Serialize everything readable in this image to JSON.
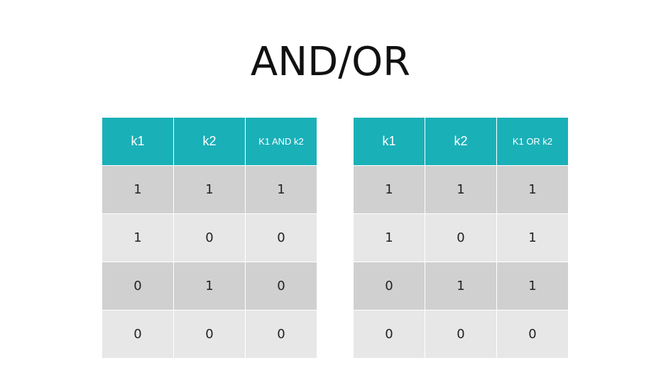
{
  "title": "AND/OR",
  "and_table": {
    "headers": [
      "k1",
      "k2",
      "K1 AND k2"
    ],
    "rows": [
      [
        "1",
        "1",
        "1"
      ],
      [
        "1",
        "0",
        "0"
      ],
      [
        "0",
        "1",
        "0"
      ],
      [
        "0",
        "0",
        "0"
      ]
    ]
  },
  "or_table": {
    "headers": [
      "k1",
      "k2",
      "K1 OR k2"
    ],
    "rows": [
      [
        "1",
        "1",
        "1"
      ],
      [
        "1",
        "0",
        "1"
      ],
      [
        "0",
        "1",
        "1"
      ],
      [
        "0",
        "0",
        "0"
      ]
    ]
  },
  "colors": {
    "header_bg": "#1ab0b8",
    "row_dark": "#d0d0d0",
    "row_light": "#e7e7e7"
  }
}
